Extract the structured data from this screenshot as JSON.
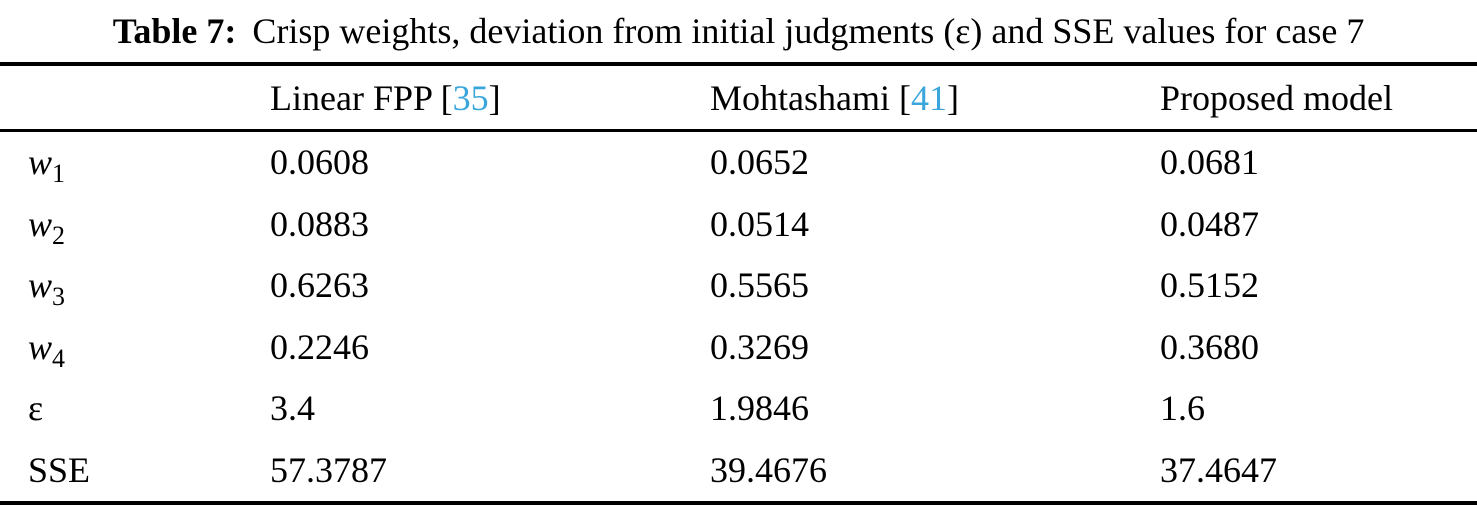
{
  "caption": {
    "label": "Table 7:",
    "text": "Crisp weights, deviation from initial judgments (ε) and SSE values for case 7"
  },
  "header": {
    "columns": [
      {
        "name": "Linear FPP",
        "bracket_open": "[",
        "citation": "35",
        "bracket_close": "]"
      },
      {
        "name": "Mohtashami",
        "bracket_open": "[",
        "citation": "41",
        "bracket_close": "]"
      },
      {
        "name": "Proposed model"
      }
    ]
  },
  "rows": [
    {
      "label": "w",
      "sub": "1",
      "values": [
        "0.0608",
        "0.0652",
        "0.0681"
      ]
    },
    {
      "label": "w",
      "sub": "2",
      "values": [
        "0.0883",
        "0.0514",
        "0.0487"
      ]
    },
    {
      "label": "w",
      "sub": "3",
      "values": [
        "0.6263",
        "0.5565",
        "0.5152"
      ]
    },
    {
      "label": "w",
      "sub": "4",
      "values": [
        "0.2246",
        "0.3269",
        "0.3680"
      ]
    },
    {
      "label": "ε",
      "sub": "",
      "values": [
        "3.4",
        "1.9846",
        "1.6"
      ]
    },
    {
      "label": "SSE",
      "sub": "",
      "values": [
        "57.3787",
        "39.4676",
        "37.4647"
      ]
    }
  ],
  "colors": {
    "citation": "#3aa6dc",
    "text": "#000000",
    "background": "#ffffff"
  }
}
